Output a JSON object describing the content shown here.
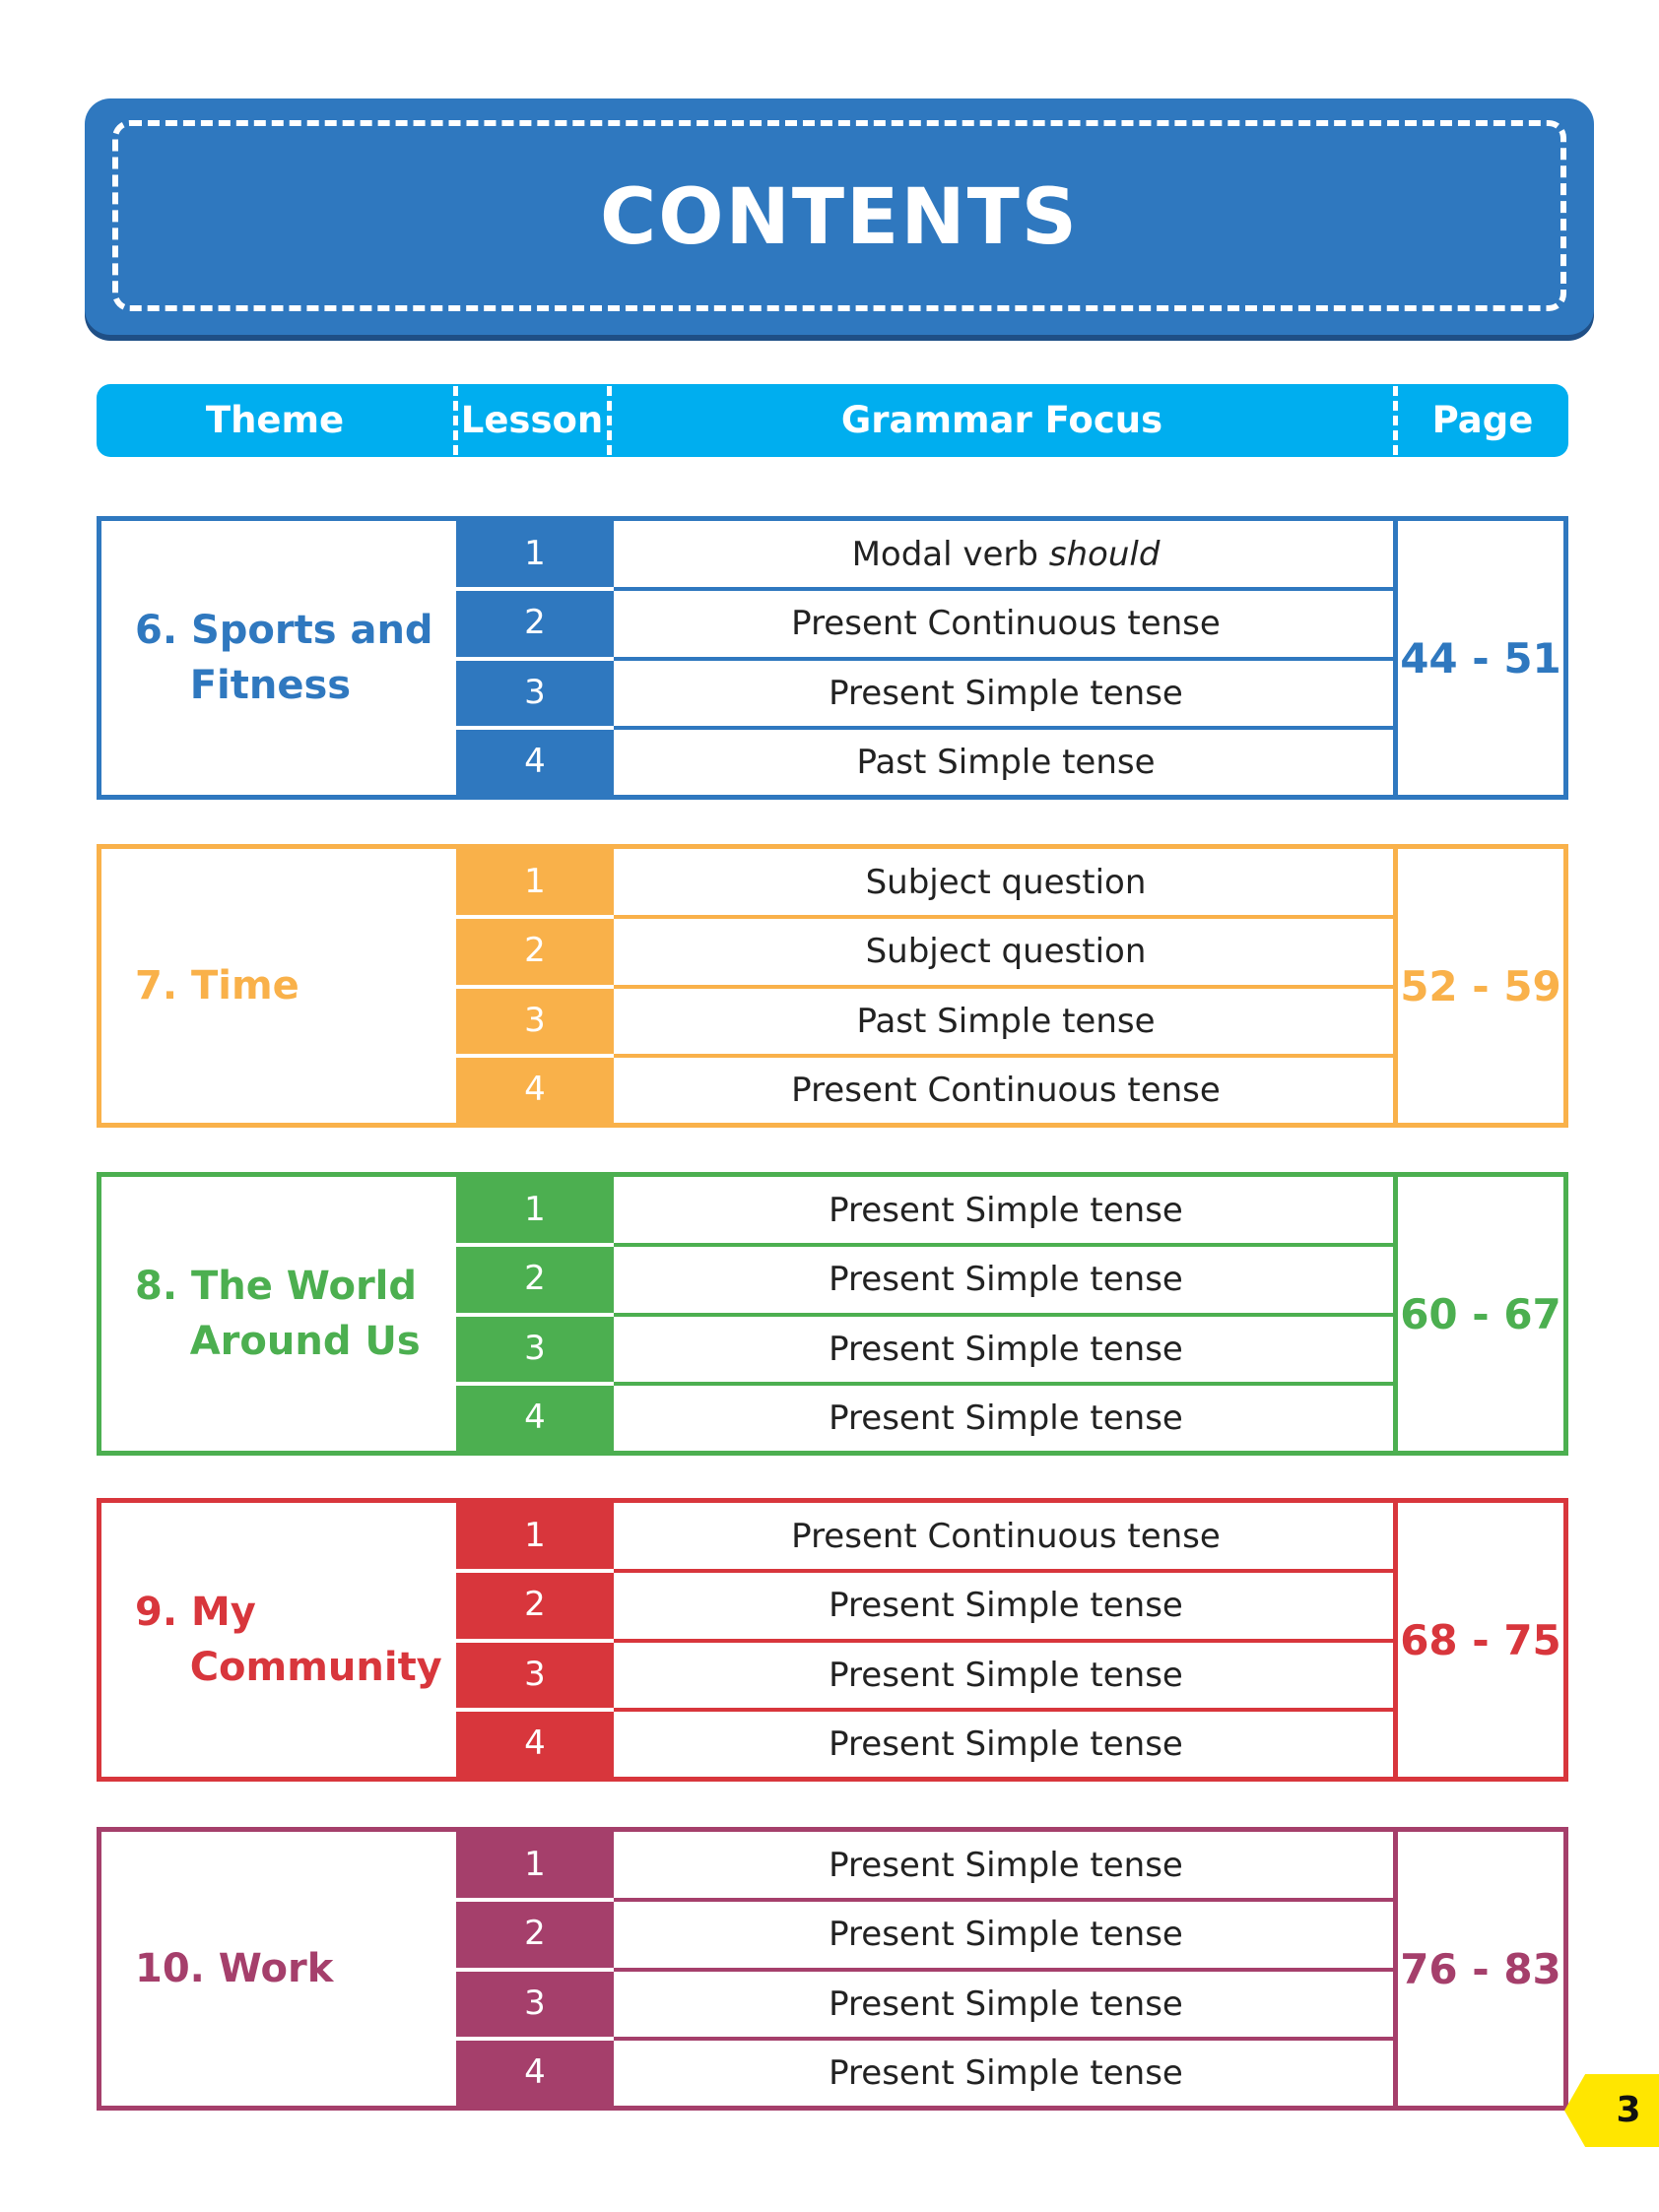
{
  "title": "CONTENTS",
  "header": {
    "theme": "Theme",
    "lesson": "Lesson",
    "grammar_focus": "Grammar Focus",
    "page": "Page"
  },
  "themes": [
    {
      "name": "6. Sports and\n    Fitness",
      "color": "#2f78bf",
      "lessons": [
        "1",
        "2",
        "3",
        "4"
      ],
      "focus": [
        "Modal verb should",
        "Present Continuous tense",
        "Present Simple tense",
        "Past Simple tense"
      ],
      "pages": "44 - 51"
    },
    {
      "name": "7. Time",
      "color": "#f9b14a",
      "lessons": [
        "1",
        "2",
        "3",
        "4"
      ],
      "focus": [
        "Subject question",
        "Subject question",
        "Past Simple tense",
        "Present Continuous tense"
      ],
      "pages": "52 - 59"
    },
    {
      "name": "8. The World\n    Around Us",
      "color": "#4caf50",
      "lessons": [
        "1",
        "2",
        "3",
        "4"
      ],
      "focus": [
        "Present Simple tense",
        "Present Simple tense",
        "Present Simple tense",
        "Present Simple tense"
      ],
      "pages": "60 - 67"
    },
    {
      "name": "9. My\n    Community",
      "color": "#d8363c",
      "lessons": [
        "1",
        "2",
        "3",
        "4"
      ],
      "focus": [
        "Present Continuous tense",
        "Present Simple tense",
        "Present Simple tense",
        "Present Simple tense"
      ],
      "pages": "68 - 75"
    },
    {
      "name": "10. Work",
      "color": "#a53f6b",
      "lessons": [
        "1",
        "2",
        "3",
        "4"
      ],
      "focus": [
        "Present Simple tense",
        "Present Simple tense",
        "Present Simple tense",
        "Present Simple tense"
      ],
      "pages": "76 - 83"
    }
  ],
  "page_number": "3"
}
